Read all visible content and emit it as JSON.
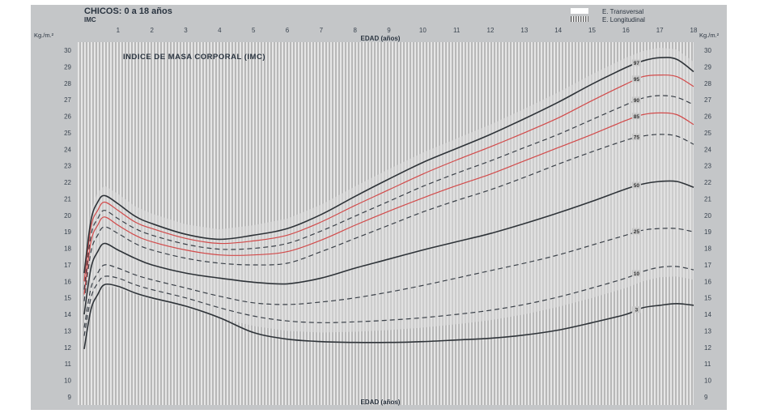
{
  "chart_data": {
    "type": "line",
    "title": "CHICOS: 0 a 18 años",
    "subtitle": "IMC",
    "inner_title": "INDICE DE MASA CORPORAL (IMC)",
    "xlabel_top": "EDAD (años)",
    "xlabel_bottom": "EDAD (años)",
    "ylabel_left": "Kg./m.²",
    "ylabel_right": "Kg./m.²",
    "xlim": [
      0,
      18
    ],
    "ylim": [
      9,
      30
    ],
    "xticks": [
      "1",
      "2",
      "3",
      "4",
      "5",
      "6",
      "7",
      "8",
      "9",
      "10",
      "11",
      "12",
      "13",
      "14",
      "15",
      "16",
      "17",
      "18"
    ],
    "yticks": [
      "9",
      "10",
      "11",
      "12",
      "13",
      "14",
      "15",
      "16",
      "17",
      "18",
      "19",
      "20",
      "21",
      "22",
      "23",
      "24",
      "25",
      "26",
      "27",
      "28",
      "29",
      "30"
    ],
    "legend": {
      "placement": "top-right",
      "items": [
        {
          "label": "E. Transversal",
          "swatch": "white"
        },
        {
          "label": "E. Longitudinal",
          "swatch": "hatched"
        }
      ]
    },
    "colors": {
      "background": "#b9b9b9",
      "stripe": "#e8e8e8",
      "solid": "#2e3338",
      "dashed": "#3a4048",
      "red": "#d24a4a"
    },
    "series": [
      {
        "label": "3",
        "style": "solid",
        "color": "#2e3338",
        "x": [
          0,
          0.2,
          0.4,
          0.6,
          1,
          1.5,
          2,
          3,
          4,
          5,
          6,
          7,
          8,
          9,
          10,
          11,
          12,
          13,
          14,
          15,
          16,
          16.5,
          17,
          17.5,
          18
        ],
        "y": [
          11.9,
          14.3,
          15.2,
          15.8,
          15.7,
          15.3,
          15.0,
          14.5,
          13.8,
          12.9,
          12.5,
          12.35,
          12.3,
          12.3,
          12.35,
          12.45,
          12.55,
          12.75,
          13.05,
          13.5,
          14.0,
          14.4,
          14.55,
          14.65,
          14.55
        ]
      },
      {
        "label": "10",
        "style": "dashed",
        "color": "#3a4048",
        "x": [
          0,
          0.2,
          0.4,
          0.6,
          1,
          1.5,
          2,
          3,
          4,
          5,
          6,
          7,
          8,
          9,
          10,
          11,
          12,
          13,
          14,
          15,
          16,
          16.5,
          17,
          17.5,
          18
        ],
        "y": [
          12.7,
          15.0,
          15.9,
          16.3,
          16.2,
          15.8,
          15.5,
          15.0,
          14.4,
          13.9,
          13.6,
          13.5,
          13.55,
          13.65,
          13.8,
          14.0,
          14.25,
          14.6,
          15.05,
          15.6,
          16.2,
          16.6,
          16.85,
          16.9,
          16.7
        ]
      },
      {
        "label": "25",
        "style": "dashed",
        "color": "#3a4048",
        "x": [
          0,
          0.2,
          0.4,
          0.6,
          1,
          1.5,
          2,
          3,
          4,
          5,
          6,
          7,
          8,
          9,
          10,
          11,
          12,
          13,
          14,
          15,
          16,
          16.5,
          17,
          17.5,
          18
        ],
        "y": [
          13.2,
          15.6,
          16.5,
          17.0,
          16.8,
          16.4,
          16.1,
          15.6,
          15.1,
          14.7,
          14.6,
          14.75,
          15.0,
          15.35,
          15.75,
          16.2,
          16.65,
          17.1,
          17.6,
          18.2,
          18.8,
          19.1,
          19.2,
          19.2,
          19.0
        ]
      },
      {
        "label": "50",
        "style": "solid",
        "color": "#2e3338",
        "x": [
          0,
          0.2,
          0.4,
          0.6,
          1,
          1.5,
          2,
          3,
          4,
          5,
          6,
          7,
          8,
          9,
          10,
          11,
          12,
          13,
          14,
          15,
          16,
          16.5,
          17,
          17.5,
          18
        ],
        "y": [
          14.0,
          16.8,
          17.8,
          18.3,
          17.9,
          17.4,
          17.0,
          16.5,
          16.2,
          15.95,
          15.85,
          16.2,
          16.8,
          17.35,
          17.9,
          18.4,
          18.9,
          19.5,
          20.15,
          20.85,
          21.6,
          21.9,
          22.05,
          22.05,
          21.7
        ]
      },
      {
        "label": "75",
        "style": "dashed",
        "color": "#3a4048",
        "x": [
          0,
          0.2,
          0.4,
          0.6,
          1,
          1.5,
          2,
          3,
          4,
          5,
          6,
          7,
          8,
          9,
          10,
          11,
          12,
          13,
          14,
          15,
          16,
          16.5,
          17,
          17.5,
          18
        ],
        "y": [
          14.8,
          17.8,
          18.8,
          19.3,
          18.9,
          18.3,
          17.9,
          17.4,
          17.1,
          17.0,
          17.1,
          17.8,
          18.6,
          19.4,
          20.2,
          20.9,
          21.55,
          22.3,
          23.1,
          23.85,
          24.55,
          24.8,
          24.9,
          24.8,
          24.3
        ]
      },
      {
        "label": "85",
        "style": "red",
        "color": "#d24a4a",
        "x": [
          0,
          0.2,
          0.4,
          0.6,
          1,
          1.5,
          2,
          3,
          4,
          5,
          6,
          7,
          8,
          9,
          10,
          11,
          12,
          13,
          14,
          15,
          16,
          16.5,
          17,
          17.5,
          18
        ],
        "y": [
          15.2,
          18.4,
          19.4,
          19.9,
          19.4,
          18.8,
          18.4,
          17.9,
          17.6,
          17.6,
          17.8,
          18.5,
          19.4,
          20.25,
          21.05,
          21.8,
          22.5,
          23.3,
          24.1,
          24.9,
          25.75,
          26.1,
          26.2,
          26.1,
          25.5
        ]
      },
      {
        "label": "90",
        "style": "dashed",
        "color": "#3a4048",
        "x": [
          0,
          0.2,
          0.4,
          0.6,
          1,
          1.5,
          2,
          3,
          4,
          5,
          6,
          7,
          8,
          9,
          10,
          11,
          12,
          13,
          14,
          15,
          16,
          16.5,
          17,
          17.5,
          18
        ],
        "y": [
          15.5,
          18.8,
          19.8,
          20.3,
          19.8,
          19.2,
          18.8,
          18.25,
          17.95,
          18.0,
          18.3,
          19.05,
          19.95,
          20.85,
          21.75,
          22.55,
          23.3,
          24.1,
          24.9,
          25.8,
          26.7,
          27.1,
          27.25,
          27.15,
          26.7
        ]
      },
      {
        "label": "95",
        "style": "red",
        "color": "#d24a4a",
        "x": [
          0,
          0.2,
          0.4,
          0.6,
          1,
          1.5,
          2,
          3,
          4,
          5,
          6,
          7,
          8,
          9,
          10,
          11,
          12,
          13,
          14,
          15,
          16,
          16.5,
          17,
          17.5,
          18
        ],
        "y": [
          16.0,
          19.3,
          20.3,
          20.8,
          20.3,
          19.6,
          19.2,
          18.6,
          18.3,
          18.45,
          18.8,
          19.6,
          20.6,
          21.55,
          22.5,
          23.35,
          24.15,
          25.0,
          25.9,
          26.95,
          27.95,
          28.4,
          28.5,
          28.4,
          27.8
        ]
      },
      {
        "label": "97",
        "style": "solid",
        "color": "#2e3338",
        "x": [
          0,
          0.2,
          0.4,
          0.6,
          1,
          1.5,
          2,
          3,
          4,
          5,
          6,
          7,
          8,
          9,
          10,
          11,
          12,
          13,
          14,
          15,
          16,
          16.5,
          17,
          17.5,
          18
        ],
        "y": [
          16.5,
          19.7,
          20.8,
          21.2,
          20.7,
          19.95,
          19.5,
          18.85,
          18.55,
          18.8,
          19.2,
          20.05,
          21.15,
          22.2,
          23.2,
          24.05,
          24.9,
          25.85,
          26.85,
          27.95,
          28.95,
          29.35,
          29.55,
          29.45,
          28.7
        ]
      }
    ]
  }
}
